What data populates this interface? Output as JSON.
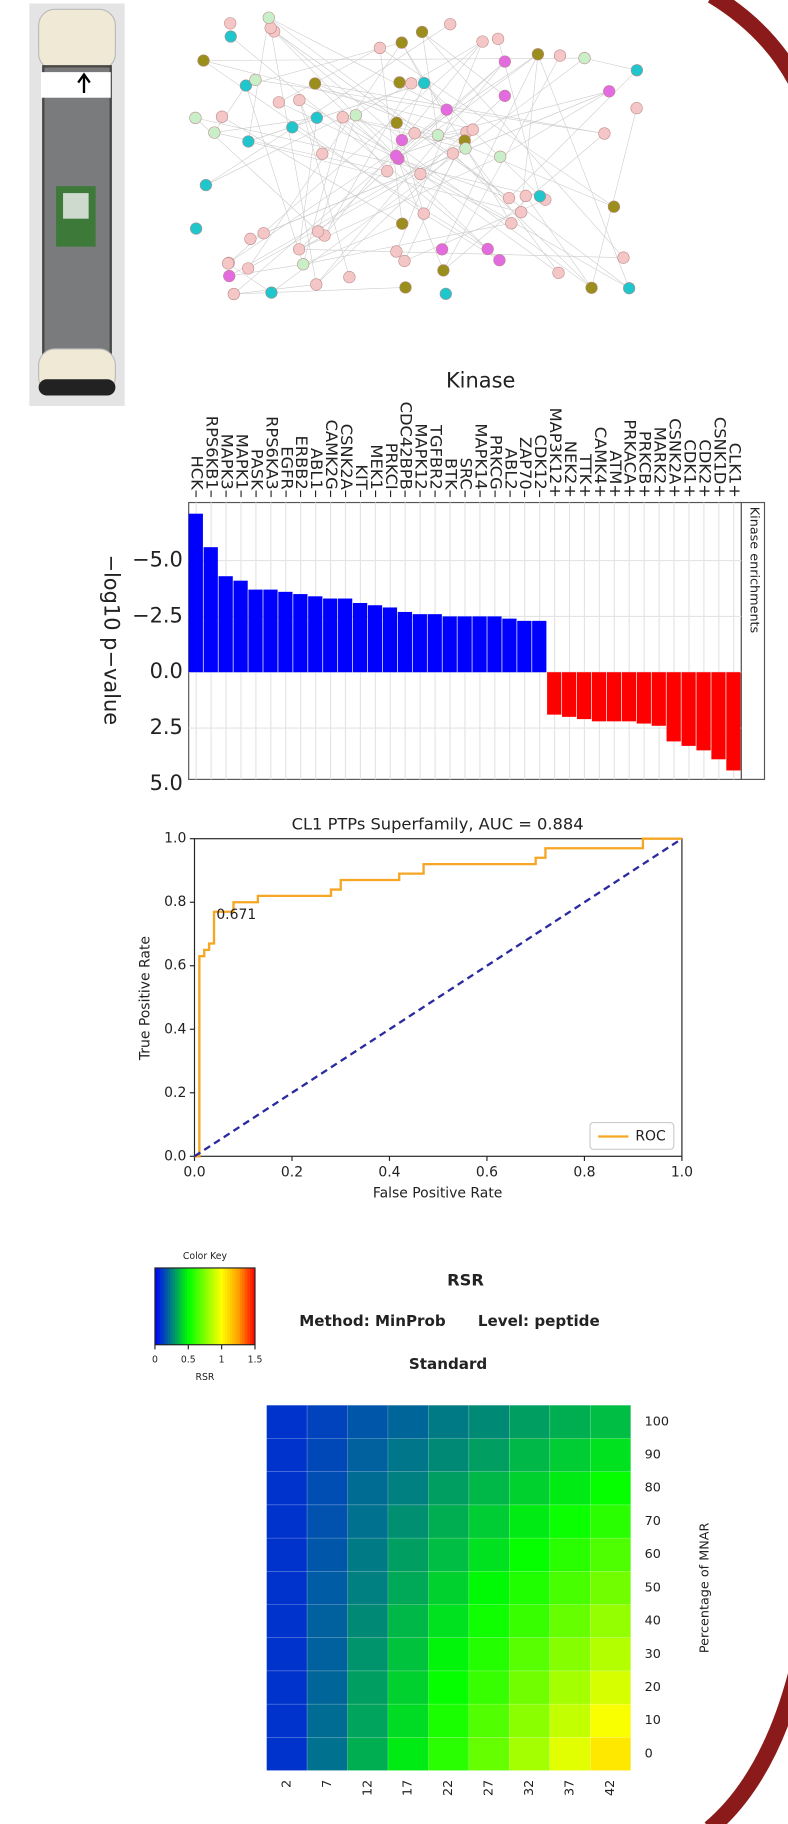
{
  "chart_data": [
    {
      "type": "bar",
      "title": "Kinase",
      "ylabel": "−log10 p−value",
      "strip_label": "Kinase enrichments",
      "categories": [
        "HCK–",
        "RPS6KB1–",
        "MAPK3–",
        "MAPK1–",
        "PASK–",
        "RPS6KA3–",
        "EGFR–",
        "ERBB2–",
        "ABL1–",
        "CAMK2G–",
        "CSNK2A–",
        "KIT–",
        "MEK1–",
        "PRKCI–",
        "CDC42BPB–",
        "MAPK12–",
        "TGFBR2–",
        "BTK–",
        "SRC–",
        "MAPK14–",
        "PRKCG–",
        "ABL2–",
        "ZAP70–",
        "CDK12–",
        "MAP3K12+",
        "NEK2+",
        "TTK+",
        "CAMK4+",
        "ATM+",
        "PRKACA+",
        "PRKCB+",
        "MARK2+",
        "CSNK2A+",
        "CDK1+",
        "CDK2+",
        "CSNK1D+",
        "CLK1+"
      ],
      "values": [
        -7.1,
        -5.6,
        -4.3,
        -4.1,
        -3.7,
        -3.7,
        -3.6,
        -3.5,
        -3.4,
        -3.3,
        -3.3,
        -3.1,
        -3.0,
        -2.9,
        -2.7,
        -2.6,
        -2.6,
        -2.5,
        -2.5,
        -2.5,
        -2.5,
        -2.4,
        -2.3,
        -2.3,
        1.9,
        2.0,
        2.1,
        2.2,
        2.2,
        2.2,
        2.3,
        2.4,
        3.1,
        3.3,
        3.5,
        3.9,
        4.4
      ],
      "color_negative": "#0000ff",
      "color_positive": "#ff0000",
      "ylim": [
        -7.6,
        4.8
      ],
      "yticks": [
        {
          "value": -5,
          "label": "−5.0"
        },
        {
          "value": -2.5,
          "label": "−2.5"
        },
        {
          "value": 0,
          "label": "0.0"
        },
        {
          "value": 2.5,
          "label": "2.5"
        },
        {
          "value": 5,
          "label": "5.0"
        }
      ],
      "grid": true
    },
    {
      "type": "line",
      "title": "CL1 PTPs Superfamily, AUC = 0.884",
      "xlabel": "False Positive Rate",
      "ylabel": "True Positive Rate",
      "series": [
        {
          "name": "ROC",
          "color": "#f5a623",
          "linestyle": "solid",
          "x": [
            0,
            0.01,
            0.01,
            0.02,
            0.02,
            0.03,
            0.03,
            0.04,
            0.04,
            0.08,
            0.08,
            0.13,
            0.13,
            0.28,
            0.28,
            0.3,
            0.3,
            0.42,
            0.42,
            0.47,
            0.47,
            0.7,
            0.7,
            0.72,
            0.72,
            0.92,
            0.92,
            1.0
          ],
          "values": [
            0,
            0,
            0.63,
            0.63,
            0.65,
            0.65,
            0.67,
            0.67,
            0.77,
            0.77,
            0.8,
            0.8,
            0.82,
            0.82,
            0.84,
            0.84,
            0.87,
            0.87,
            0.89,
            0.89,
            0.92,
            0.92,
            0.94,
            0.94,
            0.97,
            0.97,
            1.0,
            1.0
          ]
        },
        {
          "color": "#2b2ba0",
          "linestyle": "dashed",
          "x": [
            0,
            1
          ],
          "values": [
            0,
            1
          ]
        }
      ],
      "annotation": {
        "text": "0.671",
        "x": 0.04,
        "y": 0.77
      },
      "xlim": [
        0,
        1
      ],
      "ylim": [
        0,
        1
      ],
      "xticks": [
        {
          "value": 0,
          "label": "0.0"
        },
        0.2,
        0.4,
        0.6,
        0.8,
        {
          "value": 1,
          "label": "1.0"
        }
      ],
      "yticks": [
        {
          "value": 0,
          "label": "0.0"
        },
        0.2,
        0.4,
        0.6,
        0.8,
        {
          "value": 1,
          "label": "1.0"
        }
      ],
      "legend": "lower right"
    },
    {
      "type": "heatmap",
      "title": "RSR",
      "method": "Method: MinProb",
      "level": "Level: peptide",
      "subtitle": "Standard",
      "ylabel": "Percentage of MNAR",
      "key_title": "Color Key",
      "key_label": "RSR",
      "x": [
        2,
        7,
        12,
        17,
        22,
        27,
        32,
        37,
        42
      ],
      "y": [
        0,
        10,
        20,
        30,
        40,
        50,
        60,
        70,
        80,
        90,
        100
      ],
      "values": [
        [
          0.1,
          0.22,
          0.34,
          0.46,
          0.58,
          0.7,
          0.82,
          0.94,
          1.06
        ],
        [
          0.1,
          0.21,
          0.32,
          0.43,
          0.55,
          0.66,
          0.77,
          0.88,
          0.99
        ],
        [
          0.1,
          0.2,
          0.31,
          0.41,
          0.51,
          0.61,
          0.72,
          0.82,
          0.92
        ],
        [
          0.1,
          0.19,
          0.29,
          0.38,
          0.48,
          0.57,
          0.67,
          0.76,
          0.85
        ],
        [
          0.1,
          0.19,
          0.27,
          0.36,
          0.44,
          0.53,
          0.61,
          0.7,
          0.79
        ],
        [
          0.1,
          0.18,
          0.25,
          0.33,
          0.41,
          0.49,
          0.56,
          0.64,
          0.72
        ],
        [
          0.1,
          0.17,
          0.24,
          0.31,
          0.37,
          0.44,
          0.51,
          0.58,
          0.65
        ],
        [
          0.1,
          0.16,
          0.22,
          0.28,
          0.34,
          0.4,
          0.46,
          0.52,
          0.58
        ],
        [
          0.1,
          0.15,
          0.21,
          0.25,
          0.31,
          0.36,
          0.41,
          0.46,
          0.51
        ],
        [
          0.1,
          0.14,
          0.19,
          0.23,
          0.27,
          0.31,
          0.36,
          0.4,
          0.44
        ],
        [
          0.1,
          0.13,
          0.17,
          0.2,
          0.24,
          0.27,
          0.31,
          0.34,
          0.37
        ]
      ],
      "zlim": [
        0,
        1.5
      ],
      "zticks": [
        0,
        0.5,
        1,
        1.5
      ],
      "colors": [
        "#0000ff",
        "#008080",
        "#00ff00",
        "#80ff00",
        "#ffff00",
        "#ffa000",
        "#ff0000"
      ]
    }
  ]
}
